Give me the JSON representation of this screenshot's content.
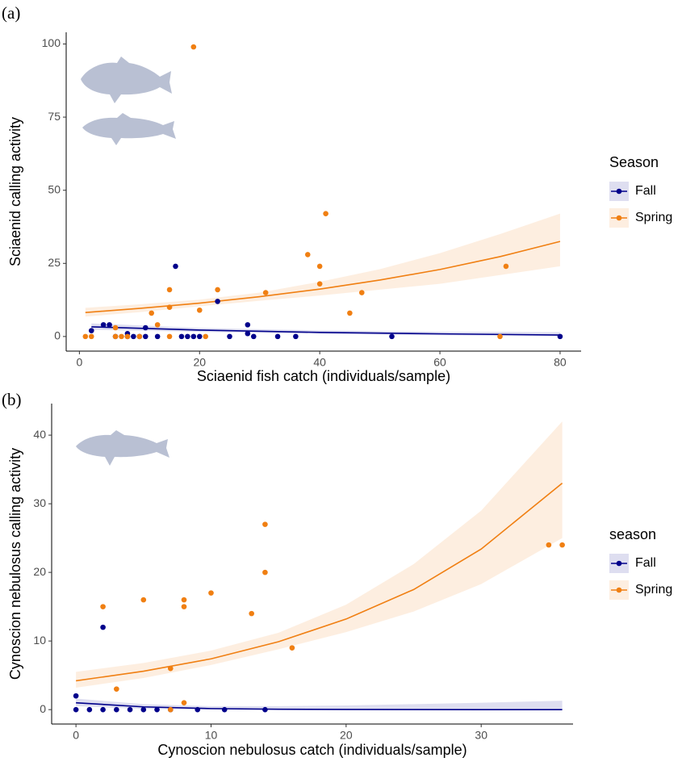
{
  "chart_data": [
    {
      "type": "scatter",
      "panel_label": "(a)",
      "x_label": "Sciaenid fish catch (individuals/sample)",
      "y_label": "Sciaenid calling activity",
      "legend_title": "Season",
      "xlim": [
        -2.2,
        83.5
      ],
      "ylim": [
        -5,
        104
      ],
      "xticks": [
        0,
        20,
        40,
        60,
        80
      ],
      "yticks": [
        0,
        25,
        50,
        75,
        100
      ],
      "series": [
        {
          "name": "Fall",
          "color": "#00008b",
          "x": [
            2,
            4,
            5,
            6,
            8,
            8,
            9,
            10,
            11,
            11,
            13,
            16,
            17,
            18,
            19,
            20,
            23,
            25,
            28,
            28,
            29,
            33,
            36,
            52,
            80
          ],
          "values": [
            2,
            4,
            4,
            0,
            1,
            0,
            0,
            0,
            3,
            0,
            0,
            24,
            0,
            0,
            0,
            0,
            12,
            0,
            4,
            1,
            0,
            0,
            0,
            0,
            0
          ],
          "fit": {
            "x": [
              2,
              20,
              40,
              60,
              80
            ],
            "values": [
              3.3,
              2.2,
              1.4,
              0.9,
              0.5
            ],
            "lower": [
              2.3,
              1.6,
              0.9,
              0.4,
              0.1
            ],
            "upper": [
              4.5,
              2.9,
              2.1,
              1.6,
              1.5
            ]
          }
        },
        {
          "name": "Spring",
          "color": "#f07f12",
          "x": [
            1,
            2,
            6,
            6,
            7,
            8,
            10,
            12,
            13,
            15,
            15,
            15,
            19,
            20,
            21,
            23,
            31,
            38,
            40,
            40,
            41,
            45,
            47,
            70,
            71
          ],
          "values": [
            0,
            0,
            3,
            0,
            0,
            0,
            0,
            8,
            4,
            16,
            10,
            0,
            99,
            9,
            0,
            16,
            15,
            28,
            24,
            18,
            42,
            8,
            15,
            0,
            24
          ],
          "fit": {
            "x": [
              1,
              10,
              20,
              30,
              40,
              50,
              60,
              70,
              80
            ],
            "values": [
              8.2,
              9.6,
              11.4,
              13.6,
              16.2,
              19.3,
              22.9,
              27.3,
              32.5
            ],
            "lower": [
              6.8,
              8.3,
              10.3,
              12.2,
              14,
              16,
              18,
              21,
              24
            ],
            "upper": [
              9.8,
              11,
              12.6,
              15,
              18.7,
              23,
              28.5,
              35,
              42
            ]
          }
        }
      ]
    },
    {
      "type": "scatter",
      "panel_label": "(b)",
      "x_label": "Cynoscion nebulosus catch (individuals/sample)",
      "y_label": "Cynoscion nebulosus calling activity",
      "legend_title": "season",
      "xlim": [
        -1.8,
        36.8
      ],
      "ylim": [
        -2.1,
        44.6
      ],
      "xticks": [
        0,
        10,
        20,
        30
      ],
      "yticks": [
        0,
        10,
        20,
        30,
        40
      ],
      "series": [
        {
          "name": "Fall",
          "color": "#00008b",
          "x": [
            0,
            0,
            1,
            2,
            2,
            3,
            4,
            5,
            6,
            7,
            9,
            11,
            14
          ],
          "values": [
            2,
            0,
            0,
            12,
            0,
            0,
            0,
            0,
            0,
            0,
            0,
            0,
            0
          ],
          "fit": {
            "x": [
              0,
              5,
              10,
              15,
              20,
              25,
              30,
              36
            ],
            "values": [
              1,
              0.4,
              0.15,
              0.06,
              0.02,
              0.01,
              0,
              0
            ],
            "lower": [
              0.5,
              0.1,
              0,
              0,
              0,
              0,
              0,
              0
            ],
            "upper": [
              1.6,
              0.8,
              0.5,
              0.5,
              0.6,
              0.8,
              1,
              1.3
            ]
          }
        },
        {
          "name": "Spring",
          "color": "#f07f12",
          "x": [
            2,
            3,
            5,
            7,
            7,
            8,
            8,
            8,
            10,
            13,
            14,
            14,
            16,
            35,
            36
          ],
          "values": [
            15,
            3,
            16,
            6,
            0,
            16,
            15,
            1,
            17,
            14,
            27,
            20,
            9,
            24,
            24
          ],
          "fit": {
            "x": [
              0,
              5,
              10,
              15,
              20,
              25,
              30,
              36
            ],
            "values": [
              4.2,
              5.6,
              7.4,
              9.9,
              13.2,
              17.5,
              23.4,
              33
            ],
            "lower": [
              3.2,
              4.6,
              6.5,
              8.8,
              11.3,
              14.3,
              18.3,
              25
            ],
            "upper": [
              5.5,
              6.8,
              8.6,
              11.2,
              15.3,
              21.2,
              29,
              42
            ]
          }
        }
      ]
    }
  ]
}
